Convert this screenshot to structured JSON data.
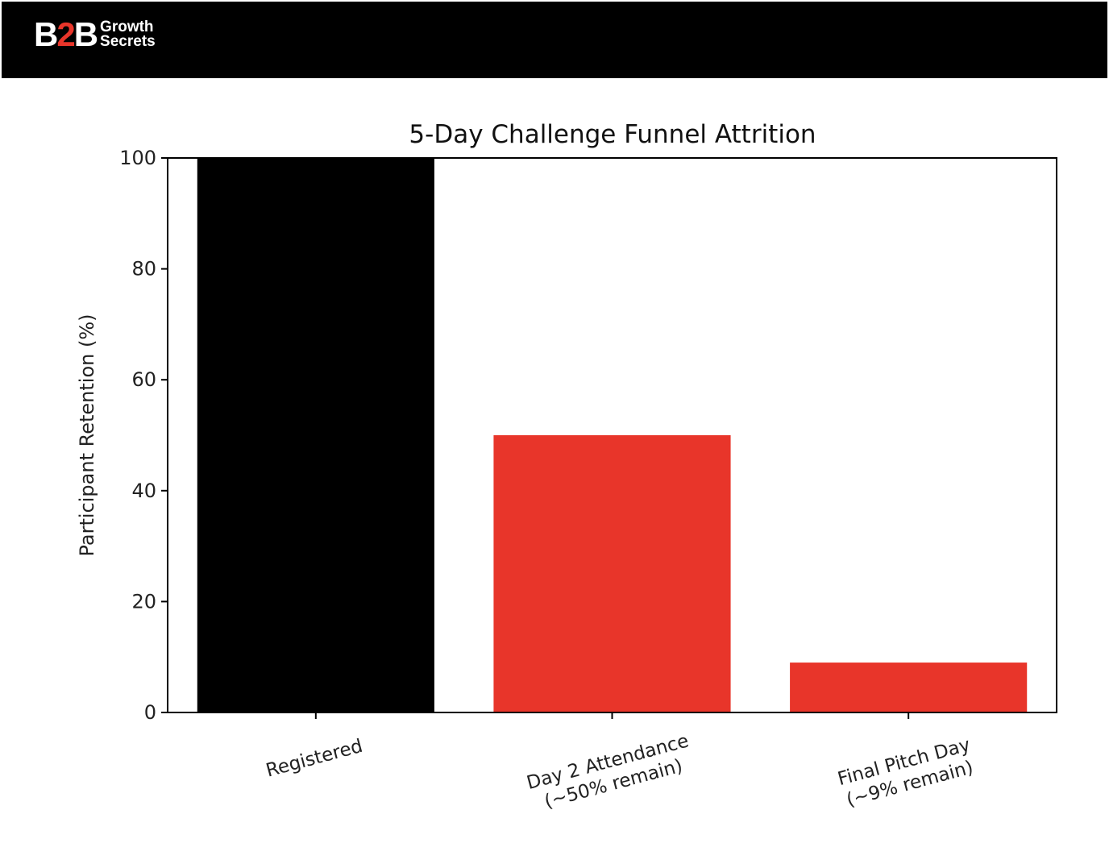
{
  "header": {
    "logo_main_left": "B",
    "logo_main_mid": "2",
    "logo_main_right": "B",
    "logo_line1": "Growth",
    "logo_line2": "Secrets"
  },
  "colors": {
    "header_bg": "#000000",
    "accent_red": "#e8352a",
    "bar_black": "#000000",
    "bar_red": "#e8352a"
  },
  "chart_data": {
    "type": "bar",
    "title": "5-Day Challenge Funnel Attrition",
    "xlabel": "",
    "ylabel": "Participant Retention (%)",
    "ylim": [
      0,
      100
    ],
    "yticks": [
      0,
      20,
      40,
      60,
      80,
      100
    ],
    "categories": [
      [
        "Registered"
      ],
      [
        "Day 2 Attendance",
        "(~50% remain)"
      ],
      [
        "Final Pitch Day",
        "(~9% remain)"
      ]
    ],
    "values": [
      100,
      50,
      9
    ],
    "bar_colors": [
      "#000000",
      "#e8352a",
      "#e8352a"
    ],
    "grid": false,
    "legend": "none"
  }
}
